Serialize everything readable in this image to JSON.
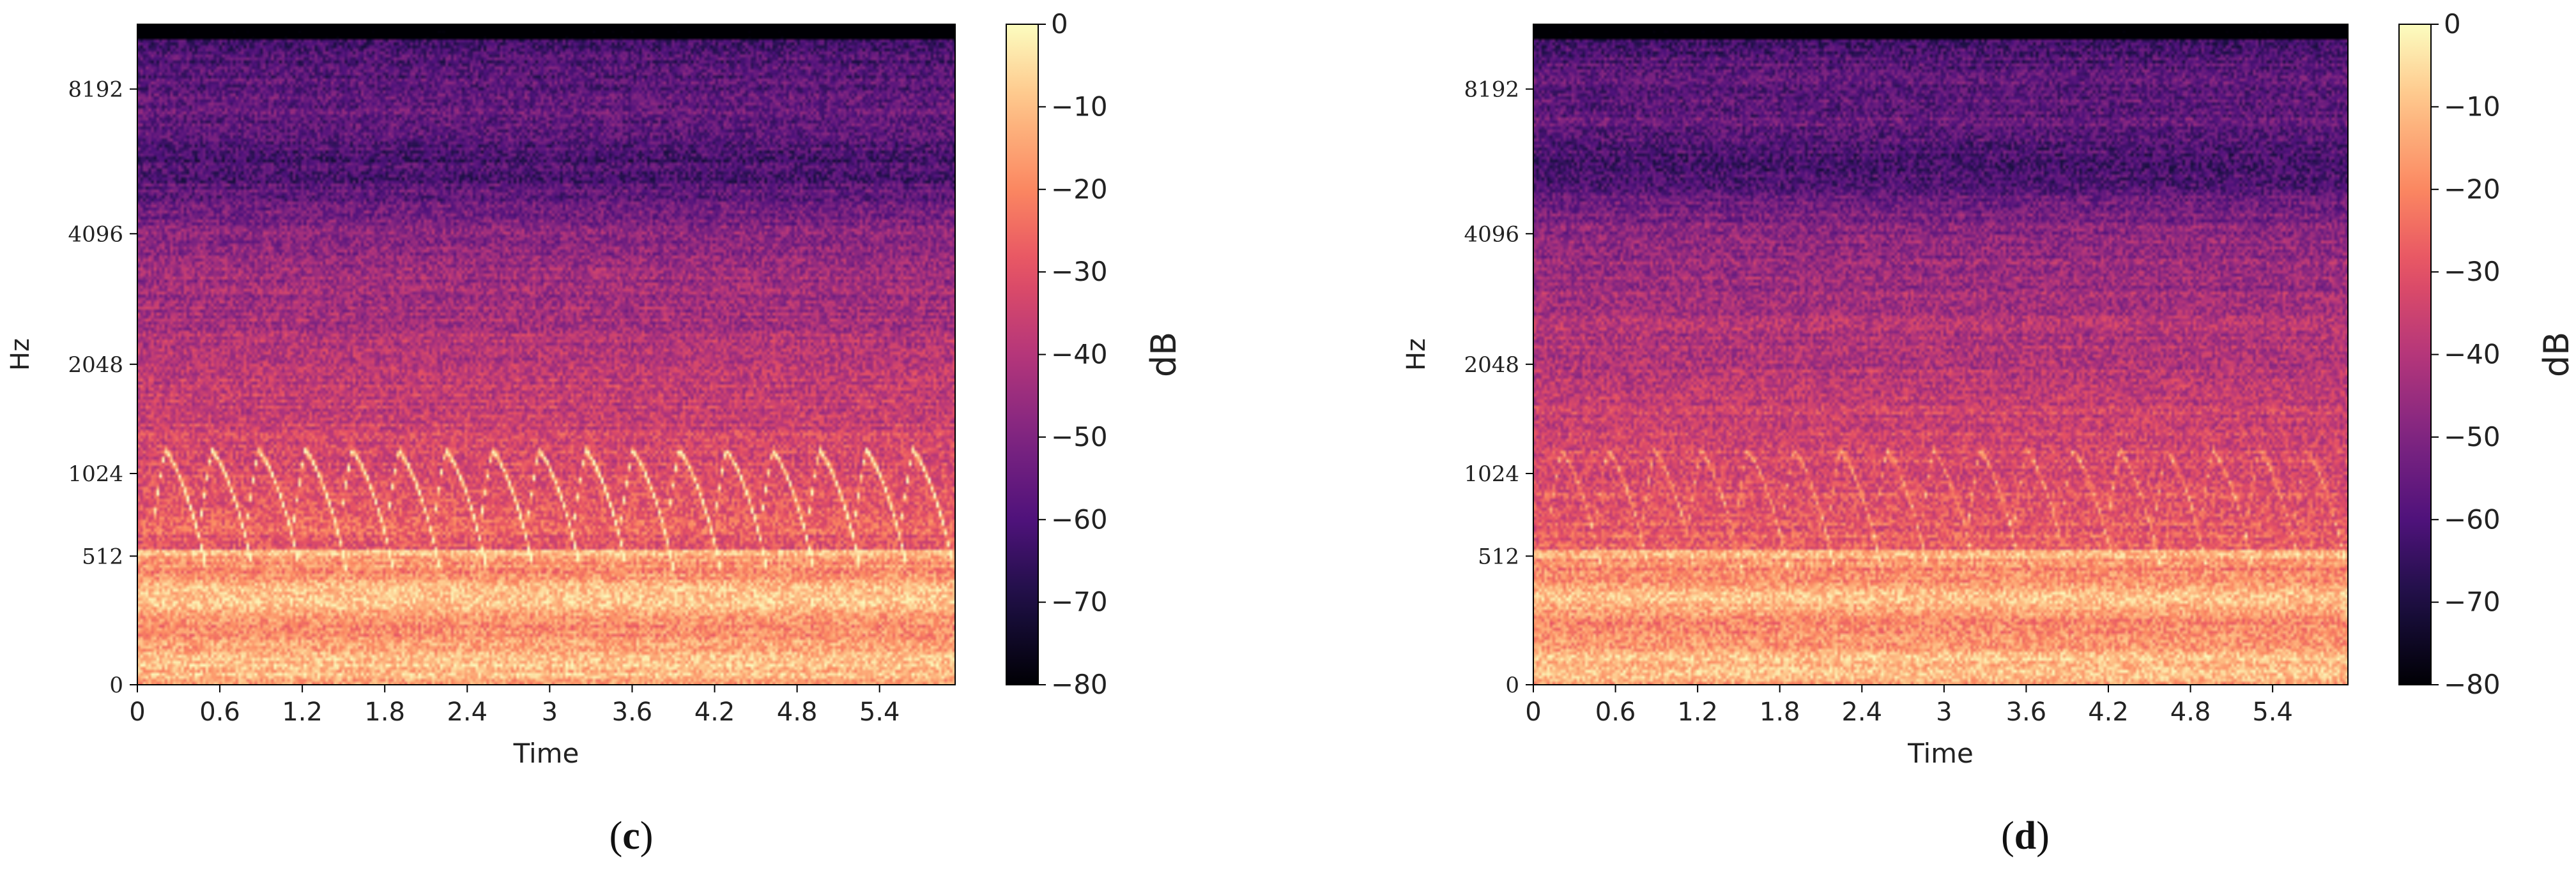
{
  "chart_data": [
    {
      "type": "heatmap",
      "panel_label": "c",
      "title": "",
      "xlabel": "Time",
      "ylabel": "Hz",
      "x_ticks": [
        "0",
        "0.6",
        "1.2",
        "1.8",
        "2.4",
        "3",
        "3.6",
        "4.2",
        "4.8",
        "5.4"
      ],
      "x_tick_values": [
        0,
        0.6,
        1.2,
        1.8,
        2.4,
        3,
        3.6,
        4.2,
        4.8,
        5.4
      ],
      "xlim": [
        0,
        5.95
      ],
      "y_scale": "mel",
      "y_ticks": [
        "0",
        "512",
        "1024",
        "2048",
        "4096",
        "8192"
      ],
      "y_tick_values": [
        0,
        512,
        1024,
        2048,
        4096,
        8192
      ],
      "ylim": [
        0,
        11025
      ],
      "colorbar": {
        "label": "dB",
        "ticks": [
          "0",
          "−10",
          "−20",
          "−30",
          "−40",
          "−50",
          "−60",
          "−70",
          "−80"
        ],
        "tick_values": [
          0,
          -10,
          -20,
          -30,
          -40,
          -50,
          -60,
          -70,
          -80
        ],
        "range": [
          -80,
          0
        ]
      },
      "colormap": "magma",
      "features": {
        "chirp_count": 17,
        "chirp_period_s": 0.34,
        "chirp_start_s": 0.2,
        "chirp_high_hz": 1200,
        "chirp_low_hz": 450,
        "chirp_strength": 1.0,
        "band_edge_hz": 540,
        "dark_band_hz": 5600
      }
    },
    {
      "type": "heatmap",
      "panel_label": "d",
      "title": "",
      "xlabel": "Time",
      "ylabel": "Hz",
      "x_ticks": [
        "0",
        "0.6",
        "1.2",
        "1.8",
        "2.4",
        "3",
        "3.6",
        "4.2",
        "4.8",
        "5.4"
      ],
      "x_tick_values": [
        0,
        0.6,
        1.2,
        1.8,
        2.4,
        3,
        3.6,
        4.2,
        4.8,
        5.4
      ],
      "xlim": [
        0,
        5.95
      ],
      "y_scale": "mel",
      "y_ticks": [
        "0",
        "512",
        "1024",
        "2048",
        "4096",
        "8192"
      ],
      "y_tick_values": [
        0,
        512,
        1024,
        2048,
        4096,
        8192
      ],
      "ylim": [
        0,
        11025
      ],
      "colorbar": {
        "label": "dB",
        "ticks": [
          "0",
          "−10",
          "−20",
          "−30",
          "−40",
          "−50",
          "−60",
          "−70",
          "−80"
        ],
        "tick_values": [
          0,
          -10,
          -20,
          -30,
          -40,
          -50,
          -60,
          -70,
          -80
        ],
        "range": [
          -80,
          0
        ]
      },
      "colormap": "magma",
      "features": {
        "chirp_count": 17,
        "chirp_period_s": 0.34,
        "chirp_start_s": 0.2,
        "chirp_high_hz": 1200,
        "chirp_low_hz": 450,
        "chirp_strength": 0.45,
        "band_edge_hz": 540,
        "dark_band_hz": 5600
      }
    }
  ]
}
